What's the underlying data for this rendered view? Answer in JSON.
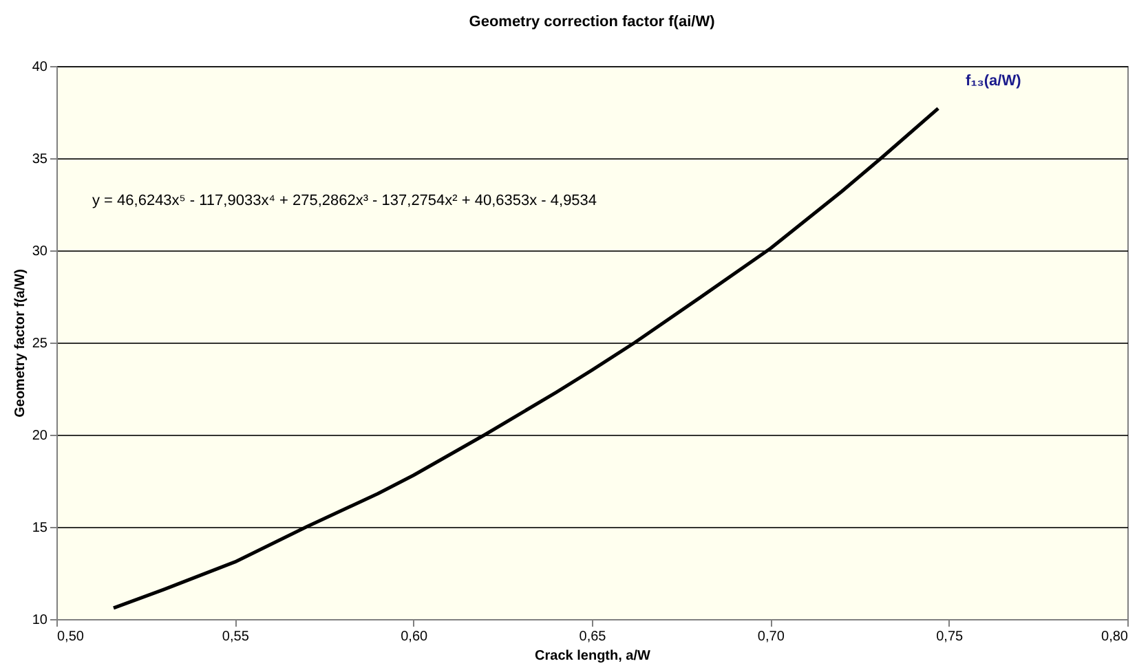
{
  "chart_data": {
    "type": "line",
    "title": "Geometry correction factor f(ai/W)",
    "xlabel": "Crack length, a/W",
    "ylabel": "Geometry factor f(a/W)",
    "x": [
      0.516,
      0.53,
      0.55,
      0.57,
      0.59,
      0.6,
      0.62,
      0.64,
      0.65,
      0.662,
      0.68,
      0.7,
      0.72,
      0.731,
      0.747
    ],
    "series": [
      {
        "name": "f₁₃(a/W)",
        "color": "#000000",
        "values": [
          10.6,
          11.6,
          13.1,
          15.0,
          16.8,
          17.8,
          20.0,
          22.3,
          23.5,
          25.0,
          27.4,
          30.1,
          33.2,
          35.0,
          37.7
        ]
      }
    ],
    "annotations": [
      "y = 46,6243x⁵ - 117,9033x⁴ + 275,2862x³ - 137,2754x² + 40,6353x - 4,9534"
    ],
    "xlim": [
      0.5,
      0.8
    ],
    "xticks": [
      {
        "value": 0.5,
        "label": "0,50"
      },
      {
        "value": 0.55,
        "label": "0,55"
      },
      {
        "value": 0.6,
        "label": "0,60"
      },
      {
        "value": 0.65,
        "label": "0,65"
      },
      {
        "value": 0.7,
        "label": "0,70"
      },
      {
        "value": 0.75,
        "label": "0,75"
      },
      {
        "value": 0.8,
        "label": "0,80"
      }
    ],
    "ylim": [
      10,
      40
    ],
    "yticks": [
      10,
      15,
      20,
      25,
      30,
      35,
      40
    ],
    "grid": "y",
    "marker": "none",
    "line_style": "solid"
  }
}
